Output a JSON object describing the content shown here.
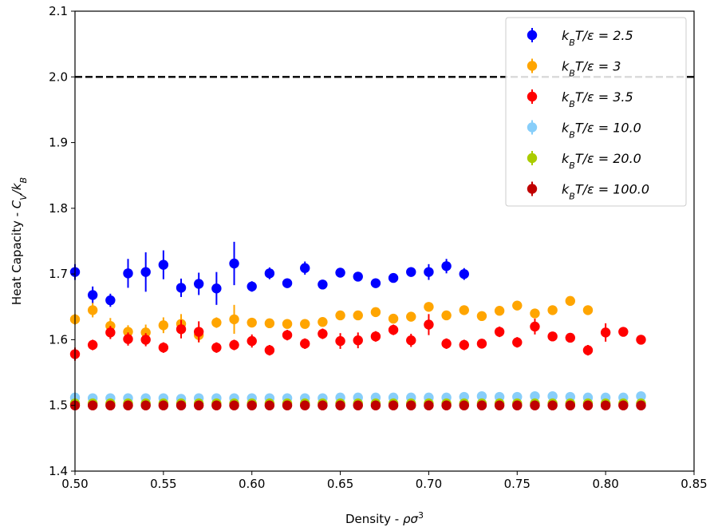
{
  "chart_data": {
    "type": "scatter",
    "xlabel": "Density - ρσ³",
    "ylabel": "Heat Capacity - C_V/k_B",
    "xlim": [
      0.5,
      0.85
    ],
    "ylim": [
      1.4,
      2.1
    ],
    "xticks": [
      0.5,
      0.55,
      0.6,
      0.65,
      0.7,
      0.75,
      0.8,
      0.85
    ],
    "xtick_labels": [
      "0.50",
      "0.55",
      "0.60",
      "0.65",
      "0.70",
      "0.75",
      "0.80",
      "0.85"
    ],
    "yticks": [
      1.4,
      1.5,
      1.6,
      1.7,
      1.8,
      1.9,
      2.0,
      2.1
    ],
    "ytick_labels": [
      "1.4",
      "1.5",
      "1.6",
      "1.7",
      "1.8",
      "1.9",
      "2.0",
      "2.1"
    ],
    "grid": false,
    "legend_position": "top-right",
    "reference_line": {
      "y": 2.0,
      "style": "dashed",
      "color": "#000000"
    },
    "series": [
      {
        "name": "k_BT/ε = 2.5",
        "label_parts": {
          "lhs": "k",
          "sub": "B",
          "rest": "T/ε = 2.5"
        },
        "color": "#0000ff",
        "points": [
          [
            0.5,
            1.703,
            0.012
          ],
          [
            0.51,
            1.668,
            0.013
          ],
          [
            0.52,
            1.66,
            0.01
          ],
          [
            0.53,
            1.701,
            0.022
          ],
          [
            0.54,
            1.703,
            0.03
          ],
          [
            0.55,
            1.714,
            0.022
          ],
          [
            0.56,
            1.679,
            0.014
          ],
          [
            0.57,
            1.685,
            0.017
          ],
          [
            0.58,
            1.678,
            0.025
          ],
          [
            0.59,
            1.716,
            0.033
          ],
          [
            0.6,
            1.681,
            0.008
          ],
          [
            0.61,
            1.701,
            0.009
          ],
          [
            0.62,
            1.686,
            0.007
          ],
          [
            0.63,
            1.709,
            0.01
          ],
          [
            0.64,
            1.684,
            0.007
          ],
          [
            0.65,
            1.702,
            0.007
          ],
          [
            0.66,
            1.696,
            0.007
          ],
          [
            0.67,
            1.686,
            0.007
          ],
          [
            0.68,
            1.694,
            0.007
          ],
          [
            0.69,
            1.703,
            0.007
          ],
          [
            0.7,
            1.703,
            0.012
          ],
          [
            0.71,
            1.712,
            0.011
          ],
          [
            0.72,
            1.7,
            0.009
          ]
        ]
      },
      {
        "name": "k_BT/ε = 3",
        "label_parts": {
          "lhs": "k",
          "sub": "B",
          "rest": "T/ε = 3"
        },
        "color": "#ffa500",
        "points": [
          [
            0.5,
            1.631,
            0.008
          ],
          [
            0.51,
            1.645,
            0.011
          ],
          [
            0.52,
            1.621,
            0.012
          ],
          [
            0.53,
            1.612,
            0.01
          ],
          [
            0.54,
            1.611,
            0.012
          ],
          [
            0.55,
            1.622,
            0.012
          ],
          [
            0.56,
            1.624,
            0.015
          ],
          [
            0.57,
            1.607,
            0.011
          ],
          [
            0.58,
            1.626,
            0.008
          ],
          [
            0.59,
            1.631,
            0.022
          ],
          [
            0.6,
            1.626,
            0.006
          ],
          [
            0.61,
            1.625,
            0.006
          ],
          [
            0.62,
            1.624,
            0.006
          ],
          [
            0.63,
            1.624,
            0.006
          ],
          [
            0.64,
            1.627,
            0.006
          ],
          [
            0.65,
            1.637,
            0.006
          ],
          [
            0.66,
            1.637,
            0.006
          ],
          [
            0.67,
            1.642,
            0.006
          ],
          [
            0.68,
            1.632,
            0.006
          ],
          [
            0.69,
            1.635,
            0.006
          ],
          [
            0.7,
            1.65,
            0.007
          ],
          [
            0.71,
            1.637,
            0.006
          ],
          [
            0.72,
            1.645,
            0.006
          ],
          [
            0.73,
            1.636,
            0.006
          ],
          [
            0.74,
            1.644,
            0.006
          ],
          [
            0.75,
            1.652,
            0.006
          ],
          [
            0.76,
            1.64,
            0.006
          ],
          [
            0.77,
            1.645,
            0.006
          ],
          [
            0.78,
            1.659,
            0.006
          ],
          [
            0.79,
            1.645,
            0.006
          ]
        ]
      },
      {
        "name": "k_BT/ε = 3.5",
        "label_parts": {
          "lhs": "k",
          "sub": "B",
          "rest": "T/ε = 3.5"
        },
        "color": "#ff0000",
        "points": [
          [
            0.5,
            1.578,
            0.01
          ],
          [
            0.51,
            1.592,
            0.008
          ],
          [
            0.52,
            1.611,
            0.01
          ],
          [
            0.53,
            1.601,
            0.01
          ],
          [
            0.54,
            1.6,
            0.01
          ],
          [
            0.55,
            1.588,
            0.008
          ],
          [
            0.56,
            1.616,
            0.014
          ],
          [
            0.57,
            1.612,
            0.016
          ],
          [
            0.58,
            1.588,
            0.008
          ],
          [
            0.59,
            1.592,
            0.008
          ],
          [
            0.6,
            1.598,
            0.01
          ],
          [
            0.61,
            1.584,
            0.008
          ],
          [
            0.62,
            1.607,
            0.008
          ],
          [
            0.63,
            1.594,
            0.008
          ],
          [
            0.64,
            1.609,
            0.008
          ],
          [
            0.65,
            1.598,
            0.012
          ],
          [
            0.66,
            1.599,
            0.012
          ],
          [
            0.67,
            1.605,
            0.008
          ],
          [
            0.68,
            1.615,
            0.008
          ],
          [
            0.69,
            1.599,
            0.01
          ],
          [
            0.7,
            1.623,
            0.016
          ],
          [
            0.71,
            1.594,
            0.008
          ],
          [
            0.72,
            1.592,
            0.008
          ],
          [
            0.73,
            1.594,
            0.006
          ],
          [
            0.74,
            1.612,
            0.008
          ],
          [
            0.75,
            1.596,
            0.008
          ],
          [
            0.76,
            1.62,
            0.012
          ],
          [
            0.77,
            1.605,
            0.006
          ],
          [
            0.78,
            1.603,
            0.006
          ],
          [
            0.79,
            1.584,
            0.008
          ],
          [
            0.8,
            1.611,
            0.014
          ],
          [
            0.81,
            1.612,
            0.006
          ],
          [
            0.82,
            1.6,
            0.006
          ]
        ]
      },
      {
        "name": "k_BT/ε = 10.0",
        "label_parts": {
          "lhs": "k",
          "sub": "B",
          "rest": "T/ε = 10.0"
        },
        "color": "#87cefa",
        "points": [
          [
            0.5,
            1.512,
            0.002
          ],
          [
            0.51,
            1.511,
            0.002
          ],
          [
            0.52,
            1.511,
            0.002
          ],
          [
            0.53,
            1.511,
            0.002
          ],
          [
            0.54,
            1.511,
            0.002
          ],
          [
            0.55,
            1.511,
            0.002
          ],
          [
            0.56,
            1.51,
            0.002
          ],
          [
            0.57,
            1.511,
            0.002
          ],
          [
            0.58,
            1.511,
            0.002
          ],
          [
            0.59,
            1.511,
            0.002
          ],
          [
            0.6,
            1.511,
            0.002
          ],
          [
            0.61,
            1.511,
            0.002
          ],
          [
            0.62,
            1.511,
            0.002
          ],
          [
            0.63,
            1.511,
            0.002
          ],
          [
            0.64,
            1.511,
            0.002
          ],
          [
            0.65,
            1.512,
            0.002
          ],
          [
            0.66,
            1.512,
            0.002
          ],
          [
            0.67,
            1.512,
            0.002
          ],
          [
            0.68,
            1.512,
            0.002
          ],
          [
            0.69,
            1.512,
            0.002
          ],
          [
            0.7,
            1.512,
            0.002
          ],
          [
            0.71,
            1.512,
            0.002
          ],
          [
            0.72,
            1.513,
            0.002
          ],
          [
            0.73,
            1.514,
            0.002
          ],
          [
            0.74,
            1.513,
            0.002
          ],
          [
            0.75,
            1.513,
            0.002
          ],
          [
            0.76,
            1.514,
            0.002
          ],
          [
            0.77,
            1.514,
            0.002
          ],
          [
            0.78,
            1.513,
            0.002
          ],
          [
            0.79,
            1.512,
            0.002
          ],
          [
            0.8,
            1.512,
            0.002
          ],
          [
            0.81,
            1.512,
            0.002
          ],
          [
            0.82,
            1.514,
            0.002
          ]
        ]
      },
      {
        "name": "k_BT/ε = 20.0",
        "label_parts": {
          "lhs": "k",
          "sub": "B",
          "rest": "T/ε = 20.0"
        },
        "color": "#aacc00",
        "points": [
          [
            0.5,
            1.503,
            0.001
          ],
          [
            0.51,
            1.503,
            0.001
          ],
          [
            0.52,
            1.503,
            0.001
          ],
          [
            0.53,
            1.503,
            0.001
          ],
          [
            0.54,
            1.503,
            0.001
          ],
          [
            0.55,
            1.503,
            0.001
          ],
          [
            0.56,
            1.503,
            0.001
          ],
          [
            0.57,
            1.503,
            0.001
          ],
          [
            0.58,
            1.503,
            0.001
          ],
          [
            0.59,
            1.503,
            0.001
          ],
          [
            0.6,
            1.503,
            0.001
          ],
          [
            0.61,
            1.503,
            0.001
          ],
          [
            0.62,
            1.503,
            0.001
          ],
          [
            0.63,
            1.503,
            0.001
          ],
          [
            0.64,
            1.503,
            0.001
          ],
          [
            0.65,
            1.503,
            0.001
          ],
          [
            0.66,
            1.503,
            0.001
          ],
          [
            0.67,
            1.503,
            0.001
          ],
          [
            0.68,
            1.503,
            0.001
          ],
          [
            0.69,
            1.503,
            0.001
          ],
          [
            0.7,
            1.503,
            0.001
          ],
          [
            0.71,
            1.503,
            0.001
          ],
          [
            0.72,
            1.503,
            0.001
          ],
          [
            0.73,
            1.503,
            0.001
          ],
          [
            0.74,
            1.503,
            0.001
          ],
          [
            0.75,
            1.503,
            0.001
          ],
          [
            0.76,
            1.503,
            0.001
          ],
          [
            0.77,
            1.503,
            0.001
          ],
          [
            0.78,
            1.503,
            0.001
          ],
          [
            0.79,
            1.503,
            0.001
          ],
          [
            0.8,
            1.503,
            0.001
          ],
          [
            0.81,
            1.503,
            0.001
          ],
          [
            0.82,
            1.503,
            0.001
          ]
        ]
      },
      {
        "name": "k_BT/ε = 100.0",
        "label_parts": {
          "lhs": "k",
          "sub": "B",
          "rest": "T/ε = 100.0"
        },
        "color": "#c00000",
        "points": [
          [
            0.5,
            1.5,
            0.001
          ],
          [
            0.51,
            1.5,
            0.001
          ],
          [
            0.52,
            1.5,
            0.001
          ],
          [
            0.53,
            1.5,
            0.001
          ],
          [
            0.54,
            1.5,
            0.001
          ],
          [
            0.55,
            1.5,
            0.001
          ],
          [
            0.56,
            1.5,
            0.001
          ],
          [
            0.57,
            1.5,
            0.001
          ],
          [
            0.58,
            1.5,
            0.001
          ],
          [
            0.59,
            1.5,
            0.001
          ],
          [
            0.6,
            1.5,
            0.001
          ],
          [
            0.61,
            1.5,
            0.001
          ],
          [
            0.62,
            1.5,
            0.001
          ],
          [
            0.63,
            1.5,
            0.001
          ],
          [
            0.64,
            1.5,
            0.001
          ],
          [
            0.65,
            1.5,
            0.001
          ],
          [
            0.66,
            1.5,
            0.001
          ],
          [
            0.67,
            1.5,
            0.001
          ],
          [
            0.68,
            1.5,
            0.001
          ],
          [
            0.69,
            1.5,
            0.001
          ],
          [
            0.7,
            1.5,
            0.001
          ],
          [
            0.71,
            1.5,
            0.001
          ],
          [
            0.72,
            1.5,
            0.001
          ],
          [
            0.73,
            1.5,
            0.001
          ],
          [
            0.74,
            1.5,
            0.001
          ],
          [
            0.75,
            1.5,
            0.001
          ],
          [
            0.76,
            1.5,
            0.001
          ],
          [
            0.77,
            1.5,
            0.001
          ],
          [
            0.78,
            1.5,
            0.001
          ],
          [
            0.79,
            1.5,
            0.001
          ],
          [
            0.8,
            1.5,
            0.001
          ],
          [
            0.81,
            1.5,
            0.001
          ],
          [
            0.82,
            1.5,
            0.001
          ]
        ]
      }
    ]
  }
}
